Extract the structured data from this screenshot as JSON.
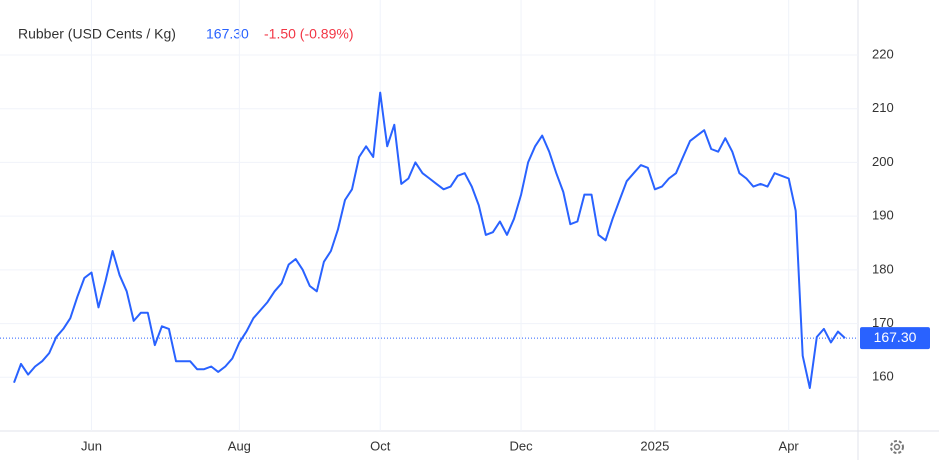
{
  "chart_data": {
    "type": "line",
    "title": "Rubber (USD Cents / Kg)",
    "last": {
      "value": 167.3,
      "label": "167.30"
    },
    "change": "-1.50 (-0.89%)",
    "categories": [
      null,
      null,
      null,
      null,
      null,
      null,
      null,
      null,
      null,
      null,
      null,
      "Jun",
      null,
      null,
      null,
      null,
      null,
      null,
      null,
      null,
      null,
      null,
      null,
      null,
      null,
      null,
      null,
      null,
      null,
      null,
      null,
      null,
      "Aug",
      null,
      null,
      null,
      null,
      null,
      null,
      null,
      null,
      null,
      null,
      null,
      null,
      null,
      null,
      null,
      null,
      null,
      null,
      null,
      "Oct",
      null,
      null,
      null,
      null,
      null,
      null,
      null,
      null,
      null,
      null,
      null,
      null,
      null,
      null,
      null,
      null,
      null,
      null,
      null,
      "Dec",
      null,
      null,
      null,
      null,
      null,
      null,
      null,
      null,
      null,
      null,
      null,
      null,
      null,
      null,
      null,
      null,
      null,
      null,
      "2025",
      null,
      null,
      null,
      null,
      null,
      null,
      null,
      null,
      null,
      null,
      null,
      null,
      null,
      null,
      null,
      null,
      null,
      null,
      "Apr",
      null,
      null,
      null,
      null,
      null,
      null,
      null,
      null
    ],
    "series": [
      {
        "name": "Rubber",
        "color": "#2962ff",
        "values": [
          159,
          162.5,
          160.5,
          162,
          163,
          164.5,
          167.5,
          169,
          171,
          175,
          178.5,
          179.5,
          173,
          178,
          183.5,
          179,
          176,
          170.5,
          172,
          172,
          166,
          169.5,
          169,
          163,
          163,
          163,
          161.5,
          161.5,
          162,
          161,
          162,
          163.5,
          166.5,
          168.5,
          171,
          172.5,
          174,
          176,
          177.5,
          181,
          182,
          180,
          177,
          176,
          181.5,
          183.5,
          187.5,
          193,
          195,
          201,
          203,
          201,
          213,
          203,
          207,
          196,
          197,
          200,
          198,
          197,
          196,
          195,
          195.5,
          197.5,
          198,
          195.5,
          192,
          186.5,
          187,
          189,
          186.5,
          189.5,
          194,
          200,
          203,
          205,
          202,
          198,
          194.5,
          188.5,
          189,
          194,
          194,
          186.5,
          185.5,
          189.5,
          193,
          196.5,
          198,
          199.5,
          199,
          195,
          195.5,
          197,
          198,
          201,
          204,
          205,
          206,
          202.5,
          202,
          204.5,
          202,
          198,
          197,
          195.5,
          196,
          195.5,
          198,
          197.5,
          197,
          191,
          164,
          158,
          167.5,
          169,
          166.5,
          168.5,
          167.3
        ]
      }
    ],
    "ylim": [
      150,
      228
    ],
    "yticks": [
      160,
      170,
      180,
      190,
      200,
      210,
      220
    ],
    "grid": true
  }
}
